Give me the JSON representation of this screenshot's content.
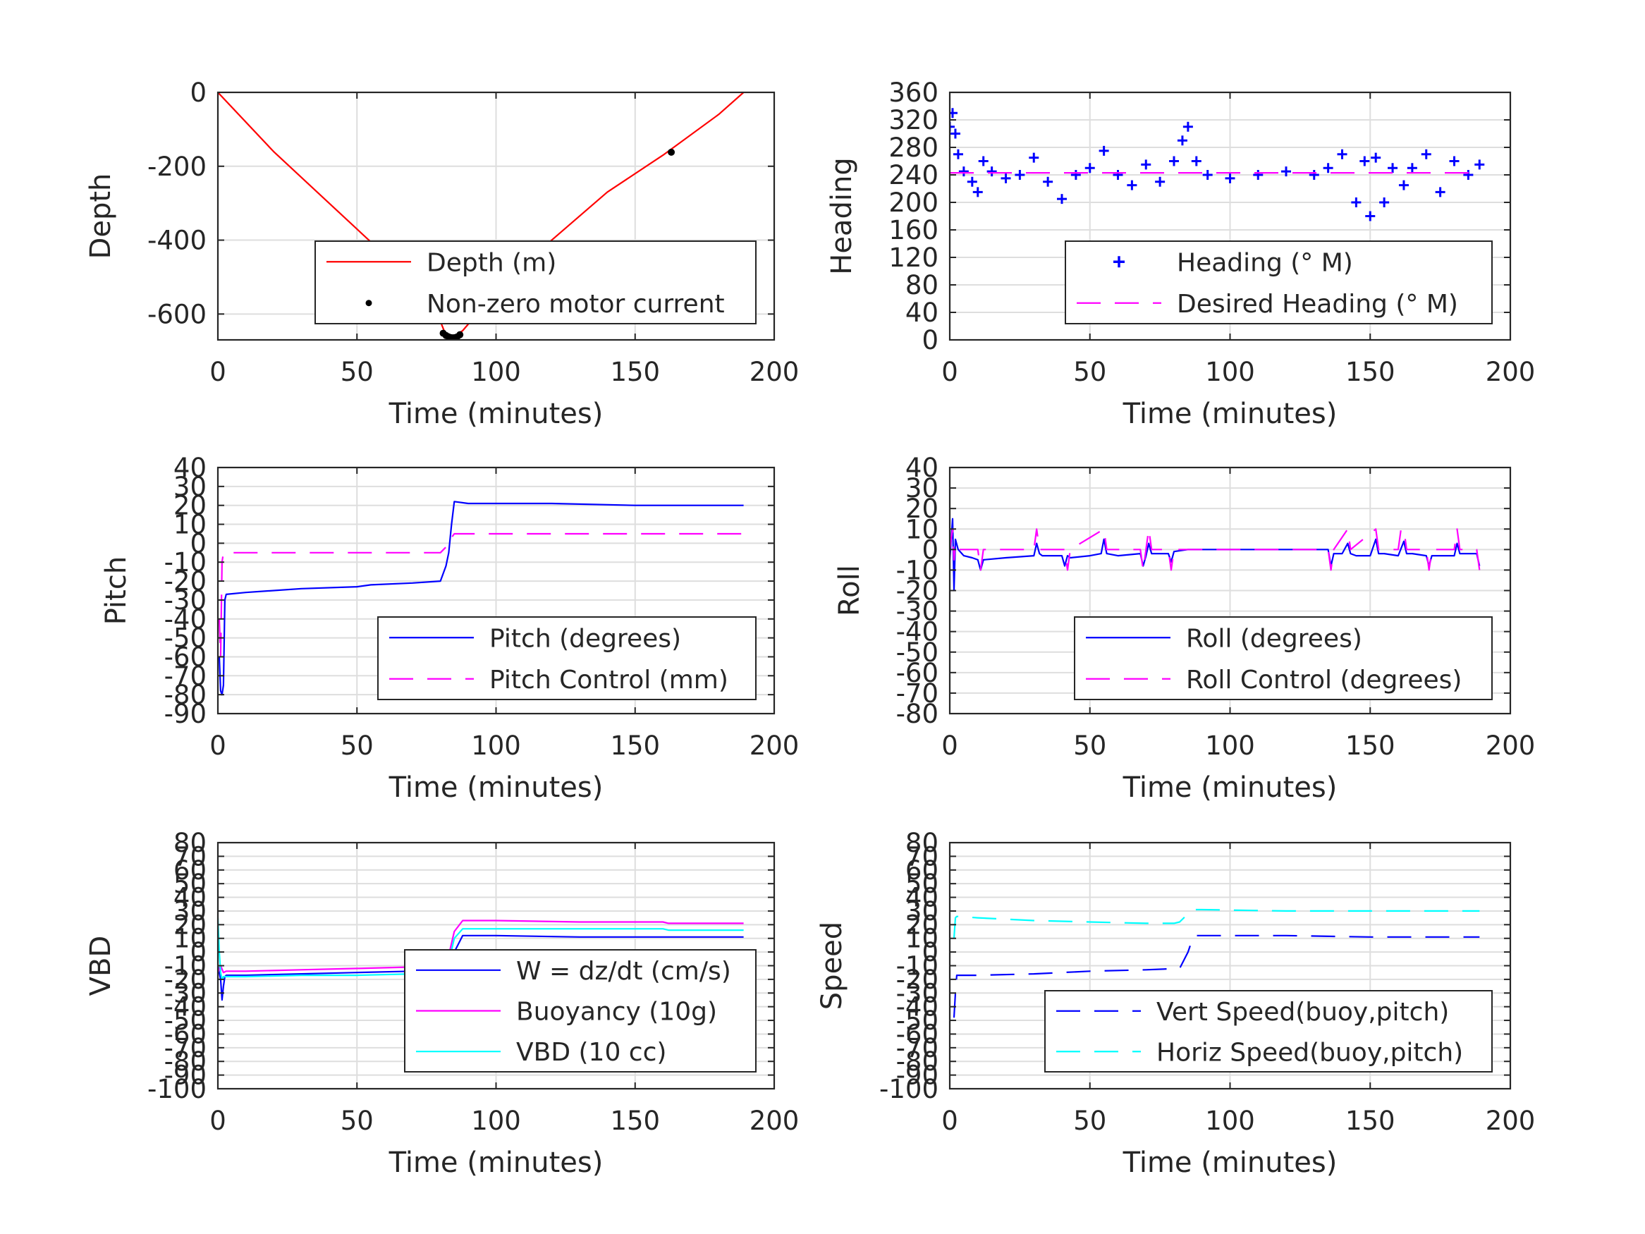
{
  "x_tick_labels": [
    "0",
    "50",
    "100",
    "150",
    "200"
  ],
  "chart_data": [
    {
      "type": "line",
      "id": "depth",
      "xlabel": "Time (minutes)",
      "ylabel": "Depth",
      "xlim": [
        0,
        200
      ],
      "ylim": [
        -670,
        0
      ],
      "x_ticks": [
        0,
        50,
        100,
        150,
        200
      ],
      "y_ticks": [
        0,
        -200,
        -400,
        -600
      ],
      "y_tick_labels": [
        "0",
        "-200",
        "-400",
        "-600"
      ],
      "grid": true,
      "legend_position": "bottom-right",
      "series": [
        {
          "name": "Depth (m)",
          "style": "solid",
          "color": "#ff0000",
          "x": [
            0,
            20,
            40,
            60,
            70,
            80,
            82,
            85,
            88,
            100,
            120,
            140,
            160,
            180,
            189
          ],
          "y": [
            0,
            -160,
            -300,
            -440,
            -520,
            -620,
            -658,
            -660,
            -645,
            -540,
            -400,
            -270,
            -170,
            -60,
            0
          ]
        },
        {
          "name": "Non-zero motor current",
          "style": "dots",
          "color": "#000000",
          "x": [
            81,
            82,
            83,
            84,
            85,
            86,
            87,
            163
          ],
          "y": [
            -652,
            -658,
            -662,
            -664,
            -664,
            -662,
            -656,
            -162
          ]
        }
      ]
    },
    {
      "type": "scatter",
      "id": "heading",
      "xlabel": "Time (minutes)",
      "ylabel": "Heading",
      "xlim": [
        0,
        200
      ],
      "ylim": [
        0,
        360
      ],
      "x_ticks": [
        0,
        50,
        100,
        150,
        200
      ],
      "y_ticks": [
        0,
        40,
        80,
        120,
        160,
        200,
        240,
        280,
        320,
        360
      ],
      "y_tick_labels": [
        "0",
        "40",
        "80",
        "120",
        "160",
        "200",
        "240",
        "280",
        "320",
        "360"
      ],
      "grid": true,
      "legend_position": "bottom-right",
      "series": [
        {
          "name": "Heading (° M)",
          "style": "plus",
          "color": "#0000ff",
          "x": [
            0,
            1,
            2,
            3,
            5,
            8,
            10,
            12,
            15,
            20,
            25,
            30,
            35,
            40,
            45,
            50,
            55,
            60,
            65,
            70,
            75,
            80,
            83,
            85,
            88,
            92,
            100,
            110,
            120,
            130,
            135,
            140,
            145,
            148,
            150,
            152,
            155,
            158,
            162,
            165,
            170,
            175,
            180,
            185,
            189
          ],
          "y": [
            310,
            330,
            300,
            270,
            245,
            230,
            215,
            260,
            245,
            235,
            240,
            265,
            230,
            205,
            240,
            250,
            275,
            240,
            225,
            255,
            230,
            260,
            290,
            310,
            260,
            240,
            235,
            240,
            245,
            240,
            250,
            270,
            200,
            260,
            180,
            265,
            200,
            250,
            225,
            250,
            270,
            215,
            260,
            240,
            255
          ]
        },
        {
          "name": "Desired Heading (° M)",
          "style": "dashed",
          "color": "#ff00ff",
          "x": [
            0,
            189
          ],
          "y": [
            243,
            243
          ]
        }
      ]
    },
    {
      "type": "line",
      "id": "pitch",
      "xlabel": "Time (minutes)",
      "ylabel": "Pitch",
      "xlim": [
        0,
        200
      ],
      "ylim": [
        -90,
        40
      ],
      "x_ticks": [
        0,
        50,
        100,
        150,
        200
      ],
      "y_ticks": [
        40,
        30,
        20,
        10,
        0,
        -10,
        -20,
        -30,
        -40,
        -50,
        -60,
        -70,
        -80,
        -90
      ],
      "y_tick_labels": [
        "40",
        "30",
        "20",
        "10",
        "0",
        "-10",
        "-20",
        "-30",
        "-40",
        "-50",
        "-60",
        "-70",
        "-80",
        "-90"
      ],
      "grid": true,
      "legend_position": "bottom-right",
      "series": [
        {
          "name": "Pitch (degrees)",
          "style": "solid",
          "color": "#0000ff",
          "x": [
            0.5,
            1,
            1.5,
            2,
            2.5,
            3,
            10,
            30,
            50,
            55,
            70,
            80,
            82,
            83,
            84,
            85,
            90,
            120,
            150,
            170,
            189
          ],
          "y": [
            -60,
            -78,
            -80,
            -75,
            -30,
            -27,
            -26,
            -24,
            -23,
            -22,
            -21,
            -20,
            -12,
            -5,
            10,
            22,
            21,
            21,
            20,
            20,
            20
          ]
        },
        {
          "name": "Pitch Control (mm)",
          "style": "dashed",
          "color": "#ff00ff",
          "x": [
            0.5,
            1,
            1.5,
            2,
            3,
            80,
            82,
            83,
            84,
            85,
            189
          ],
          "y": [
            -40,
            -60,
            -10,
            -5,
            -5,
            -5,
            -2,
            -2,
            3,
            5,
            5
          ]
        }
      ]
    },
    {
      "type": "line",
      "id": "roll",
      "xlabel": "Time (minutes)",
      "ylabel": "Roll",
      "xlim": [
        0,
        200
      ],
      "ylim": [
        -80,
        40
      ],
      "x_ticks": [
        0,
        50,
        100,
        150,
        200
      ],
      "y_ticks": [
        40,
        30,
        20,
        10,
        0,
        -10,
        -20,
        -30,
        -40,
        -50,
        -60,
        -70,
        -80
      ],
      "y_tick_labels": [
        "40",
        "30",
        "20",
        "10",
        "0",
        "-10",
        "-20",
        "-30",
        "-40",
        "-50",
        "-60",
        "-70",
        "-80"
      ],
      "grid": true,
      "legend_position": "bottom-right",
      "series": [
        {
          "name": "Roll (degrees)",
          "style": "solid",
          "color": "#0000ff",
          "x": [
            0,
            1,
            1.5,
            2,
            3,
            5,
            8,
            10,
            11,
            12,
            20,
            30,
            31,
            32,
            33,
            40,
            41,
            42,
            43,
            50,
            54,
            55,
            56,
            60,
            68,
            69,
            70,
            71,
            72,
            78,
            79,
            80,
            85,
            100,
            120,
            135,
            136,
            137,
            140,
            142,
            143,
            145,
            150,
            152,
            153,
            155,
            160,
            162,
            163,
            165,
            170,
            171,
            172,
            180,
            181,
            182,
            188,
            189
          ],
          "y": [
            -5,
            15,
            -20,
            5,
            0,
            -3,
            -4,
            -5,
            -10,
            -5,
            -4,
            -3,
            3,
            -2,
            -3,
            -3,
            -8,
            -3,
            -4,
            -3,
            -2,
            5,
            -2,
            -3,
            -2,
            -8,
            -3,
            3,
            -2,
            -2,
            -6,
            -1,
            0,
            0,
            0,
            0,
            -8,
            -2,
            -2,
            3,
            -2,
            -3,
            -3,
            5,
            -2,
            -2,
            -3,
            4,
            -2,
            -2,
            -3,
            -8,
            -3,
            -3,
            3,
            -2,
            -2,
            -8
          ]
        },
        {
          "name": "Roll Control (degrees)",
          "style": "dashed",
          "color": "#ff00ff",
          "x": [
            0,
            1,
            1.5,
            2,
            3,
            10,
            11,
            12,
            30,
            31,
            32,
            41,
            42,
            43,
            55,
            56,
            68,
            69,
            70,
            71,
            72,
            78,
            79,
            80,
            135,
            136,
            137,
            142,
            143,
            152,
            153,
            160,
            161,
            162,
            163,
            170,
            171,
            172,
            180,
            181,
            182,
            188,
            189
          ],
          "y": [
            0,
            10,
            -5,
            3,
            0,
            0,
            -10,
            0,
            0,
            10,
            0,
            0,
            -10,
            0,
            10,
            0,
            0,
            -10,
            0,
            10,
            0,
            0,
            -10,
            0,
            0,
            -10,
            0,
            10,
            0,
            10,
            0,
            0,
            10,
            10,
            0,
            0,
            -10,
            0,
            0,
            10,
            0,
            0,
            -10
          ]
        }
      ]
    },
    {
      "type": "line",
      "id": "vbd",
      "xlabel": "Time (minutes)",
      "ylabel": "VBD",
      "xlim": [
        0,
        200
      ],
      "ylim": [
        -100,
        80
      ],
      "x_ticks": [
        0,
        50,
        100,
        150,
        200
      ],
      "y_ticks": [
        80,
        70,
        60,
        50,
        40,
        30,
        20,
        10,
        0,
        -10,
        -20,
        -30,
        -40,
        -50,
        -60,
        -70,
        -80,
        -90,
        -100
      ],
      "y_tick_labels": [
        "80",
        "70",
        "60",
        "50",
        "40",
        "30",
        "20",
        "10",
        "0",
        "-10",
        "-20",
        "-30",
        "-40",
        "-50",
        "-60",
        "-70",
        "-80",
        "-90",
        "-100"
      ],
      "grid": true,
      "legend_position": "bottom-right",
      "series": [
        {
          "name": "W = dz/dt (cm/s)",
          "style": "solid",
          "color": "#0000ff",
          "x": [
            0,
            1,
            1.5,
            2,
            2.5,
            3,
            10,
            30,
            50,
            70,
            82,
            85,
            88,
            100,
            130,
            160,
            189
          ],
          "y": [
            -10,
            -20,
            -35,
            -25,
            -18,
            -17,
            -17,
            -16,
            -15,
            -14,
            -13,
            0,
            12,
            12,
            11,
            11,
            11
          ]
        },
        {
          "name": "Buoyancy (10g)",
          "style": "solid",
          "color": "#ff00ff",
          "x": [
            0,
            1,
            2,
            3,
            10,
            30,
            50,
            70,
            82,
            85,
            88,
            100,
            130,
            160,
            162,
            189
          ],
          "y": [
            -15,
            -10,
            -15,
            -14,
            -14,
            -13,
            -12,
            -11,
            -11,
            15,
            23,
            23,
            22,
            22,
            21,
            21
          ]
        },
        {
          "name": "VBD (10 cc)",
          "style": "solid",
          "color": "#00ffff",
          "x": [
            0,
            0.5,
            1,
            1.5,
            2,
            3,
            10,
            30,
            50,
            70,
            82,
            85,
            88,
            100,
            130,
            160,
            162,
            189
          ],
          "y": [
            25,
            0,
            -15,
            -20,
            -18,
            -18,
            -18,
            -17,
            -17,
            -16,
            -16,
            10,
            17,
            17,
            17,
            17,
            16,
            16
          ]
        }
      ]
    },
    {
      "type": "line",
      "id": "speed",
      "xlabel": "Time (minutes)",
      "ylabel": "Speed",
      "xlim": [
        0,
        200
      ],
      "ylim": [
        -100,
        80
      ],
      "x_ticks": [
        0,
        50,
        100,
        150,
        200
      ],
      "y_ticks": [
        80,
        70,
        60,
        50,
        40,
        30,
        20,
        10,
        0,
        -10,
        -20,
        -30,
        -40,
        -50,
        -60,
        -70,
        -80,
        -90,
        -100
      ],
      "y_tick_labels": [
        "80",
        "70",
        "60",
        "50",
        "40",
        "30",
        "20",
        "10",
        "0",
        "-10",
        "-20",
        "-30",
        "-40",
        "-50",
        "-60",
        "-70",
        "-80",
        "-90",
        "-100"
      ],
      "grid": true,
      "legend_position": "bottom-right",
      "series": [
        {
          "name": "Vert Speed(buoy,pitch)",
          "style": "dashed",
          "color": "#0000ff",
          "x": [
            1.5,
            2,
            2.5,
            3,
            10,
            30,
            50,
            70,
            82,
            85,
            87,
            90,
            120,
            150,
            189
          ],
          "y": [
            -48,
            -30,
            -17,
            -17,
            -17,
            -16,
            -14,
            -13,
            -12,
            0,
            12,
            12,
            12,
            11,
            11
          ]
        },
        {
          "name": "Horiz Speed(buoy,pitch)",
          "style": "dashed",
          "color": "#00ffff",
          "x": [
            1.5,
            2,
            2.5,
            3,
            10,
            30,
            50,
            70,
            80,
            82,
            85,
            87,
            90,
            120,
            150,
            189
          ],
          "y": [
            10,
            25,
            26,
            26,
            25,
            23,
            22,
            21,
            21,
            22,
            28,
            31,
            31,
            30,
            30,
            30
          ]
        }
      ]
    }
  ]
}
